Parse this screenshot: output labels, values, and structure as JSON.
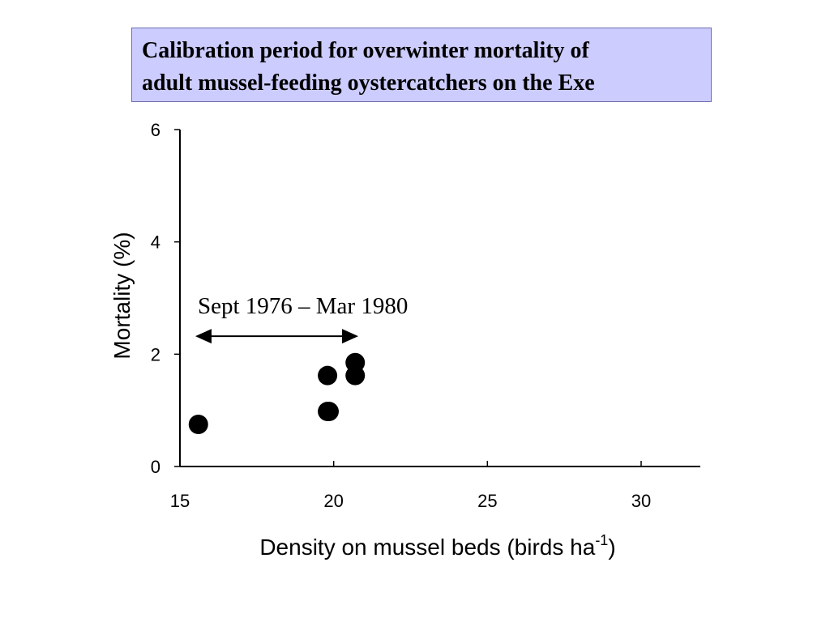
{
  "title": {
    "line1": "Calibration period for overwinter mortality of",
    "line2": "adult mussel-feeding oystercatchers on the Exe"
  },
  "chart_data": {
    "type": "scatter",
    "xlabel": "Density on mussel beds (birds ha",
    "xlabel_superscript": "-1",
    "xlabel_suffix": ")",
    "ylabel": "Mortality (%)",
    "xlim": [
      15,
      32
    ],
    "ylim": [
      0,
      6
    ],
    "xticks": [
      15,
      20,
      25,
      30
    ],
    "yticks": [
      0,
      2,
      4,
      6
    ],
    "grid": false,
    "points": [
      {
        "x": 15.6,
        "y": 0.75
      },
      {
        "x": 19.8,
        "y": 1.62
      },
      {
        "x": 19.8,
        "y": 0.98
      },
      {
        "x": 19.85,
        "y": 0.98
      },
      {
        "x": 20.7,
        "y": 1.85
      },
      {
        "x": 20.7,
        "y": 1.62
      }
    ],
    "marker_color": "#000000",
    "annotation": {
      "text": "Sept 1976 – Mar 1980",
      "arrow_from_x": 15.5,
      "arrow_to_x": 20.8,
      "arrow_y": 2.32
    }
  }
}
